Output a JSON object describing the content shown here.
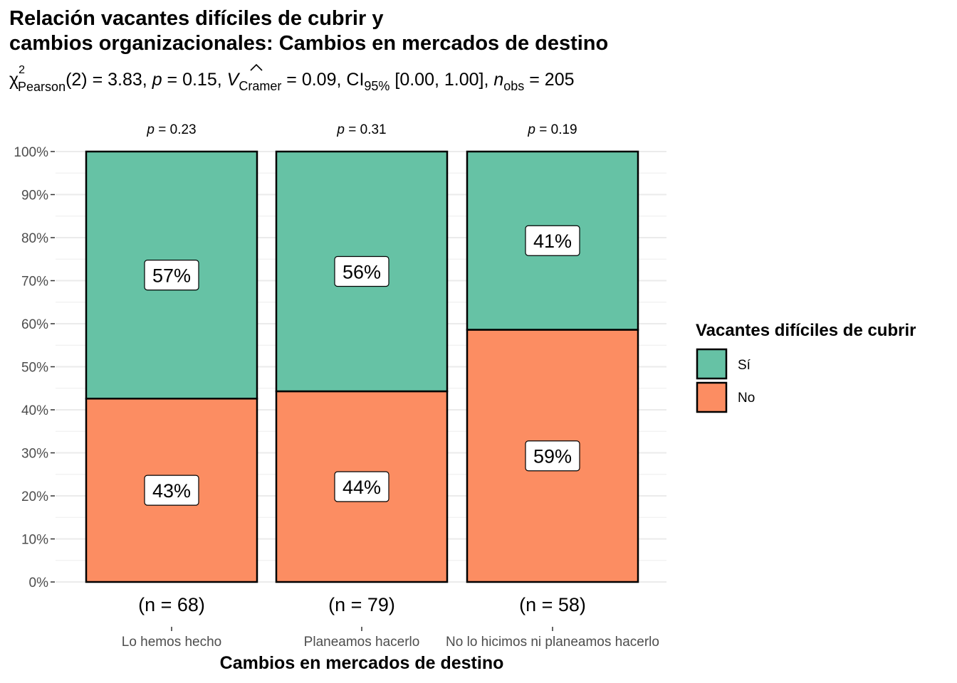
{
  "chart_data": {
    "type": "bar",
    "stacked": true,
    "title_lines": [
      "Relación vacantes difíciles de cubrir y",
      "cambios organizacionales: Cambios en mercados de destino"
    ],
    "subtitle": {
      "chi_symbol": "χ",
      "chi_sup": "2",
      "chi_sub": "Pearson",
      "df_text": "(2) = 3.83, ",
      "p_letter": "p",
      "p_text": " = 0.15, ",
      "v_letter": "V",
      "v_sub": "Cramer",
      "v_text": " = 0.09, CI",
      "ci_sub": "95%",
      "ci_text": " [0.00, 1.00], ",
      "n_letter": "n",
      "n_sub": "obs",
      "n_text": " = 205"
    },
    "xlabel": "Cambios en mercados de destino",
    "ylabel": "",
    "ylim": [
      0,
      100
    ],
    "y_ticks": [
      "0%",
      "10%",
      "20%",
      "30%",
      "40%",
      "50%",
      "60%",
      "70%",
      "80%",
      "90%",
      "100%"
    ],
    "categories": [
      "Lo hemos hecho",
      "Planeamos hacerlo",
      "No lo hicimos ni planeamos hacerlo"
    ],
    "n_labels": [
      "(n = 68)",
      "(n = 79)",
      "(n = 58)"
    ],
    "p_labels": [
      "= 0.23",
      "= 0.31",
      "= 0.19"
    ],
    "p_letter": "p",
    "legend": {
      "title": "Vacantes difíciles de cubrir",
      "position": "right"
    },
    "series": [
      {
        "name": "No",
        "color": "#FC8D62",
        "values": [
          42.6,
          44.3,
          58.6
        ],
        "labels": [
          "43%",
          "44%",
          "59%"
        ]
      },
      {
        "name": "Sí",
        "color": "#66C2A5",
        "values": [
          57.4,
          55.7,
          41.4
        ],
        "labels": [
          "57%",
          "56%",
          "41%"
        ]
      }
    ],
    "legend_order": [
      "Sí",
      "No"
    ],
    "grid": true
  }
}
